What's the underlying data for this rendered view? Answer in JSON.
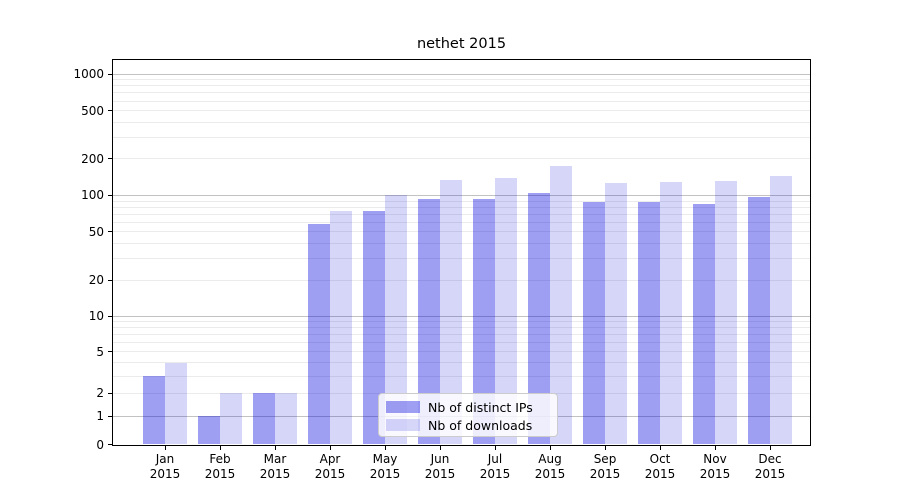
{
  "title": "nethet 2015",
  "colors": {
    "bar_distinct_ips": "rgba(0,0,220,0.38)",
    "bar_downloads": "rgba(0,0,220,0.16)",
    "grid_major": "#c2c2c2",
    "grid_minor": "#ebebeb",
    "axis_spine": "#000000",
    "tick_text": "#000000",
    "legend_border": "#cccccc"
  },
  "chart_data": {
    "type": "bar",
    "title": "nethet 2015",
    "categories": [
      "Jan 2015",
      "Feb 2015",
      "Mar 2015",
      "Apr 2015",
      "May 2015",
      "Jun 2015",
      "Jul 2015",
      "Aug 2015",
      "Sep 2015",
      "Oct 2015",
      "Nov 2015",
      "Dec 2015"
    ],
    "series": [
      {
        "name": "Nb of distinct IPs",
        "values": [
          3,
          1,
          2,
          58,
          75,
          93,
          93,
          105,
          88,
          89,
          85,
          98
        ]
      },
      {
        "name": "Nb of downloads",
        "values": [
          4,
          2,
          2,
          74,
          100,
          133,
          138,
          175,
          127,
          130,
          131,
          145
        ]
      }
    ],
    "xlabel": "",
    "ylabel": "",
    "y_scale": "asinh-log (log-like axis that includes 0)",
    "y_ticks": [
      0,
      1,
      2,
      5,
      10,
      20,
      50,
      100,
      200,
      500,
      1000
    ],
    "y_major_gridlines": [
      1,
      10,
      100,
      1000
    ],
    "y_minor_gridlines": [
      3,
      4,
      6,
      7,
      8,
      9,
      30,
      40,
      60,
      70,
      80,
      90,
      300,
      400,
      600,
      700,
      800,
      900
    ],
    "ylim": [
      0,
      1330
    ],
    "grid": true,
    "legend_position": "lower center"
  }
}
